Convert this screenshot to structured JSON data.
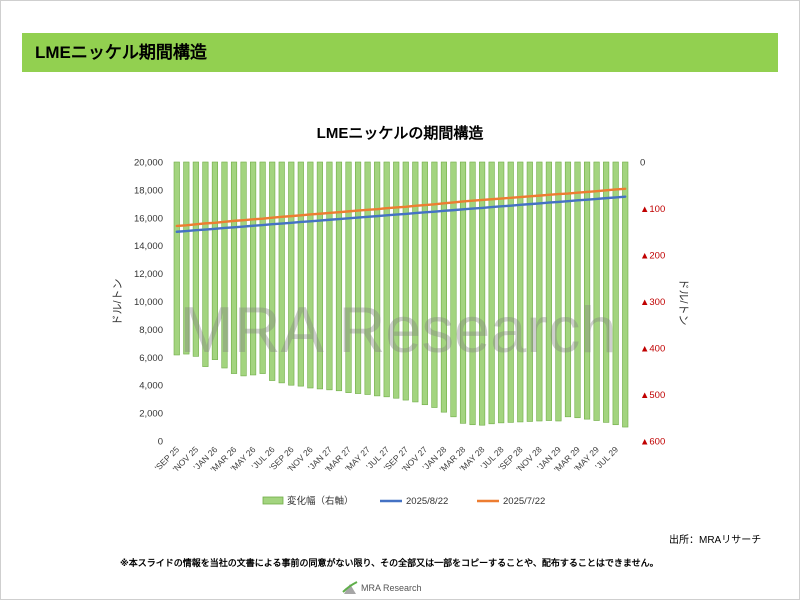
{
  "header": {
    "title": "LMEニッケル期間構造"
  },
  "colors": {
    "header_bar": "#92d050",
    "negative_tick": "#c00000"
  },
  "chart_data": {
    "type": "bar",
    "title": "LMEニッケルの期間構造",
    "ylabel": "ドル/トン",
    "y2label": "ドル/トン",
    "ylim": [
      0,
      20000
    ],
    "y2lim": [
      -600,
      0
    ],
    "grid": false,
    "legend": "bottom",
    "y_ticks": [
      {
        "value": 20000,
        "label": "20,000"
      },
      {
        "value": 18000,
        "label": "18,000"
      },
      {
        "value": 16000,
        "label": "16,000"
      },
      {
        "value": 14000,
        "label": "14,000"
      },
      {
        "value": 12000,
        "label": "12,000"
      },
      {
        "value": 10000,
        "label": "10,000"
      },
      {
        "value": 8000,
        "label": "8,000"
      },
      {
        "value": 6000,
        "label": "6,000"
      },
      {
        "value": 4000,
        "label": "4,000"
      },
      {
        "value": 2000,
        "label": "2,000"
      },
      {
        "value": 0,
        "label": "0"
      }
    ],
    "y2_ticks": [
      {
        "value": 0,
        "label": "0"
      },
      {
        "value": -100,
        "label": "▲100"
      },
      {
        "value": -200,
        "label": "▲200"
      },
      {
        "value": -300,
        "label": "▲300"
      },
      {
        "value": -400,
        "label": "▲400"
      },
      {
        "value": -500,
        "label": "▲500"
      },
      {
        "value": -600,
        "label": "▲600"
      }
    ],
    "x_tick_labels": [
      "'SEP 25",
      "'NOV 25",
      "'JAN 26",
      "'MAR 26",
      "'MAY 26",
      "'JUL 26",
      "'SEP 26",
      "'NOV 26",
      "'JAN 27",
      "'MAR 27",
      "'MAY 27",
      "'JUL 27",
      "'SEP 27",
      "'NOV 27",
      "'JAN 28",
      "'MAR 28",
      "'MAY 28",
      "'JUL 28",
      "'SEP 28",
      "'NOV 28",
      "'JAN 29",
      "'MAR 29",
      "'MAY 29",
      "'JUL 29"
    ],
    "series": [
      {
        "name": "変化幅（右軸）",
        "type": "bar",
        "axis": "right",
        "color": "#a3d47f",
        "edge_color": "#70ad47",
        "values": [
          -415,
          -413,
          -418,
          -440,
          -425,
          -443,
          -455,
          -460,
          -458,
          -455,
          -470,
          -475,
          -480,
          -482,
          -486,
          -488,
          -490,
          -492,
          -496,
          -498,
          -500,
          -503,
          -505,
          -508,
          -512,
          -516,
          -522,
          -528,
          -538,
          -548,
          -562,
          -565,
          -566,
          -563,
          -561,
          -560,
          -559,
          -558,
          -557,
          -556,
          -557,
          -548,
          -550,
          -553,
          -556,
          -560,
          -565,
          -570
        ]
      },
      {
        "name": "2025/8/22",
        "type": "line",
        "axis": "left",
        "color": "#4472c4",
        "values": [
          15000,
          15050,
          15110,
          15160,
          15210,
          15270,
          15320,
          15370,
          15430,
          15480,
          15540,
          15590,
          15640,
          15700,
          15750,
          15800,
          15860,
          15910,
          15960,
          16020,
          16070,
          16120,
          16180,
          16230,
          16280,
          16340,
          16390,
          16440,
          16500,
          16550,
          16610,
          16660,
          16710,
          16770,
          16820,
          16870,
          16930,
          16980,
          17030,
          17090,
          17140,
          17190,
          17250,
          17300,
          17350,
          17410,
          17460,
          17510
        ]
      },
      {
        "name": "2025/7/22",
        "type": "line",
        "axis": "left",
        "color": "#ed7d31",
        "values": [
          15420,
          15460,
          15530,
          15600,
          15640,
          15710,
          15780,
          15830,
          15890,
          15940,
          16010,
          16070,
          16120,
          16180,
          16240,
          16290,
          16350,
          16400,
          16460,
          16520,
          16570,
          16620,
          16690,
          16740,
          16790,
          16860,
          16910,
          16970,
          17040,
          17100,
          17170,
          17230,
          17280,
          17330,
          17380,
          17430,
          17490,
          17540,
          17590,
          17650,
          17700,
          17740,
          17800,
          17850,
          17910,
          17970,
          18030,
          18080
        ]
      }
    ]
  },
  "watermark": "MRA Research",
  "source": "出所：MRAリサーチ",
  "disclaimer": "※本スライドの情報を当社の文書による事前の同意がない限り、その全部又は一部をコピーすることや、配布することはできません。",
  "footer_logo": {
    "text": "MRA Research",
    "icon": "mra-logo-icon"
  }
}
